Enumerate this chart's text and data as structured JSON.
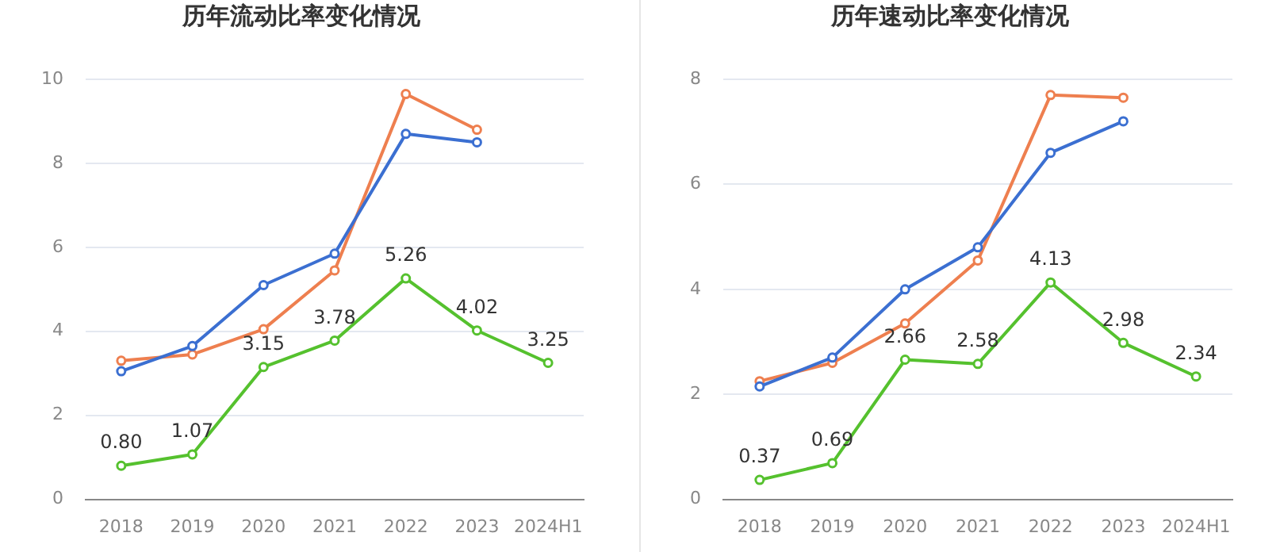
{
  "chart_data": [
    {
      "type": "line",
      "title": "历年流动比率变化情况",
      "categories": [
        "2018",
        "2019",
        "2020",
        "2021",
        "2022",
        "2023",
        "2024H1"
      ],
      "ylim": [
        0,
        10
      ],
      "yticks": [
        0,
        2,
        4,
        6,
        8,
        10
      ],
      "grid": "y",
      "legend": false,
      "marker": "circle",
      "line_style": "solid",
      "series": [
        {
          "color": "#3b6fd1",
          "values": [
            3.05,
            3.65,
            5.1,
            5.85,
            8.7,
            8.5,
            null
          ]
        },
        {
          "color": "#ee7f4f",
          "values": [
            3.3,
            3.45,
            4.05,
            5.45,
            9.65,
            8.8,
            null
          ]
        },
        {
          "color": "#55c12e",
          "values": [
            0.8,
            1.07,
            3.15,
            3.78,
            5.26,
            4.02,
            3.25
          ],
          "value_labels": [
            "0.80",
            "1.07",
            "3.15",
            "3.78",
            "5.26",
            "4.02",
            "3.25"
          ]
        }
      ]
    },
    {
      "type": "line",
      "title": "历年速动比率变化情况",
      "categories": [
        "2018",
        "2019",
        "2020",
        "2021",
        "2022",
        "2023",
        "2024H1"
      ],
      "ylim": [
        0,
        8
      ],
      "yticks": [
        0,
        2,
        4,
        6,
        8
      ],
      "grid": "y",
      "legend": false,
      "marker": "circle",
      "line_style": "solid",
      "series": [
        {
          "color": "#3b6fd1",
          "values": [
            2.15,
            2.7,
            4.0,
            4.8,
            6.6,
            7.2,
            null
          ]
        },
        {
          "color": "#ee7f4f",
          "values": [
            2.25,
            2.6,
            3.35,
            4.55,
            7.7,
            7.65,
            null
          ]
        },
        {
          "color": "#55c12e",
          "values": [
            0.37,
            0.69,
            2.66,
            2.58,
            4.13,
            2.98,
            2.34
          ],
          "value_labels": [
            "0.37",
            "0.69",
            "2.66",
            "2.58",
            "4.13",
            "2.98",
            "2.34"
          ]
        }
      ]
    }
  ]
}
